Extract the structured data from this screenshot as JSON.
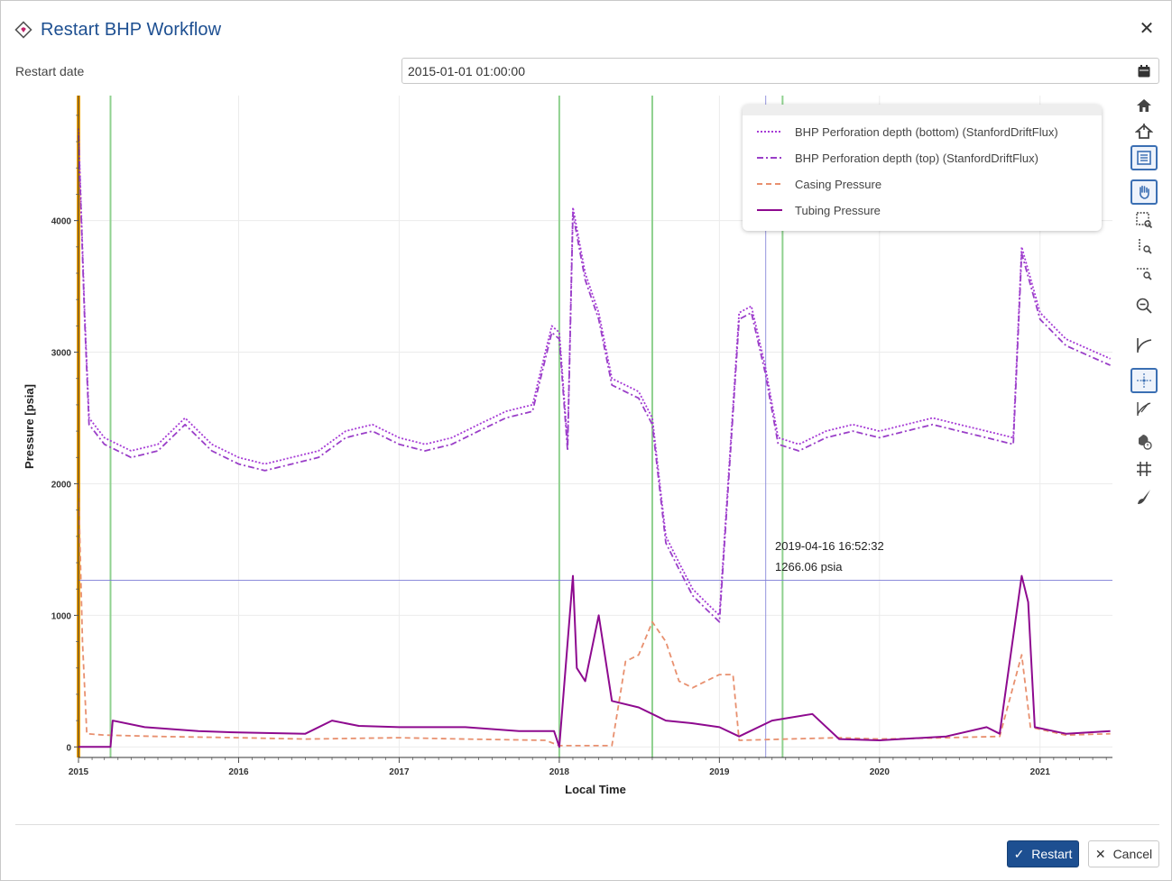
{
  "dialog": {
    "title": "Restart BHP Workflow",
    "close_label": "✕"
  },
  "restart_date": {
    "label": "Restart date",
    "value": "2015-01-01 01:00:00"
  },
  "chart_data": {
    "type": "line",
    "xlabel": "Local Time",
    "ylabel": "Pressure [psia]",
    "x_ticks": [
      "2015",
      "2016",
      "2017",
      "2018",
      "2019",
      "2020",
      "2021"
    ],
    "y_ticks": [
      "0",
      "1000",
      "2000",
      "3000",
      "4000"
    ],
    "xlim": [
      "2015-01-01",
      "2021-06-15"
    ],
    "ylim": [
      -80,
      4950
    ],
    "grid": true,
    "legend_position": "top-right",
    "series": [
      {
        "name": "BHP Perforation depth (bottom) (StanfordDriftFlux)",
        "color": "#a63bd6",
        "style": "dotted",
        "points": [
          [
            "2015-01-01",
            4700
          ],
          [
            "2015-01-15",
            3300
          ],
          [
            "2015-01-25",
            2500
          ],
          [
            "2015-03-01",
            2350
          ],
          [
            "2015-05-01",
            2250
          ],
          [
            "2015-07-01",
            2300
          ],
          [
            "2015-09-01",
            2500
          ],
          [
            "2015-11-01",
            2300
          ],
          [
            "2016-01-01",
            2200
          ],
          [
            "2016-03-01",
            2150
          ],
          [
            "2016-05-01",
            2200
          ],
          [
            "2016-07-01",
            2250
          ],
          [
            "2016-09-01",
            2400
          ],
          [
            "2016-11-01",
            2450
          ],
          [
            "2017-01-01",
            2350
          ],
          [
            "2017-03-01",
            2300
          ],
          [
            "2017-05-01",
            2350
          ],
          [
            "2017-07-01",
            2450
          ],
          [
            "2017-09-01",
            2550
          ],
          [
            "2017-11-01",
            2600
          ],
          [
            "2017-12-15",
            3200
          ],
          [
            "2018-01-01",
            3150
          ],
          [
            "2018-01-20",
            2300
          ],
          [
            "2018-02-01",
            4100
          ],
          [
            "2018-03-01",
            3600
          ],
          [
            "2018-04-01",
            3300
          ],
          [
            "2018-05-01",
            2800
          ],
          [
            "2018-07-01",
            2700
          ],
          [
            "2018-08-01",
            2500
          ],
          [
            "2018-09-01",
            1600
          ],
          [
            "2018-10-01",
            1400
          ],
          [
            "2018-11-01",
            1200
          ],
          [
            "2018-12-01",
            1100
          ],
          [
            "2019-01-01",
            1000
          ],
          [
            "2019-02-15",
            3300
          ],
          [
            "2019-03-15",
            3350
          ],
          [
            "2019-04-15",
            2900
          ],
          [
            "2019-05-15",
            2350
          ],
          [
            "2019-07-01",
            2300
          ],
          [
            "2019-09-01",
            2400
          ],
          [
            "2019-11-01",
            2450
          ],
          [
            "2020-01-01",
            2400
          ],
          [
            "2020-03-01",
            2450
          ],
          [
            "2020-05-01",
            2500
          ],
          [
            "2020-07-01",
            2450
          ],
          [
            "2020-09-01",
            2400
          ],
          [
            "2020-11-01",
            2350
          ],
          [
            "2020-11-20",
            3800
          ],
          [
            "2021-01-01",
            3300
          ],
          [
            "2021-03-01",
            3100
          ],
          [
            "2021-06-10",
            2950
          ]
        ]
      },
      {
        "name": "BHP Perforation depth (top) (StanfordDriftFlux)",
        "color": "#9a3fc8",
        "style": "dashdot",
        "points": [
          [
            "2015-01-01",
            4650
          ],
          [
            "2015-01-15",
            3250
          ],
          [
            "2015-01-25",
            2450
          ],
          [
            "2015-03-01",
            2300
          ],
          [
            "2015-05-01",
            2200
          ],
          [
            "2015-07-01",
            2250
          ],
          [
            "2015-09-01",
            2450
          ],
          [
            "2015-11-01",
            2250
          ],
          [
            "2016-01-01",
            2150
          ],
          [
            "2016-03-01",
            2100
          ],
          [
            "2016-05-01",
            2150
          ],
          [
            "2016-07-01",
            2200
          ],
          [
            "2016-09-01",
            2350
          ],
          [
            "2016-11-01",
            2400
          ],
          [
            "2017-01-01",
            2300
          ],
          [
            "2017-03-01",
            2250
          ],
          [
            "2017-05-01",
            2300
          ],
          [
            "2017-07-01",
            2400
          ],
          [
            "2017-09-01",
            2500
          ],
          [
            "2017-11-01",
            2550
          ],
          [
            "2017-12-15",
            3150
          ],
          [
            "2018-01-01",
            3100
          ],
          [
            "2018-01-20",
            2250
          ],
          [
            "2018-02-01",
            4050
          ],
          [
            "2018-03-01",
            3550
          ],
          [
            "2018-04-01",
            3250
          ],
          [
            "2018-05-01",
            2750
          ],
          [
            "2018-07-01",
            2650
          ],
          [
            "2018-08-01",
            2450
          ],
          [
            "2018-09-01",
            1550
          ],
          [
            "2018-10-01",
            1350
          ],
          [
            "2018-11-01",
            1150
          ],
          [
            "2018-12-01",
            1050
          ],
          [
            "2019-01-01",
            950
          ],
          [
            "2019-02-15",
            3250
          ],
          [
            "2019-03-15",
            3300
          ],
          [
            "2019-04-15",
            2850
          ],
          [
            "2019-05-15",
            2300
          ],
          [
            "2019-07-01",
            2250
          ],
          [
            "2019-09-01",
            2350
          ],
          [
            "2019-11-01",
            2400
          ],
          [
            "2020-01-01",
            2350
          ],
          [
            "2020-03-01",
            2400
          ],
          [
            "2020-05-01",
            2450
          ],
          [
            "2020-07-01",
            2400
          ],
          [
            "2020-09-01",
            2350
          ],
          [
            "2020-11-01",
            2300
          ],
          [
            "2020-11-20",
            3750
          ],
          [
            "2021-01-01",
            3250
          ],
          [
            "2021-03-01",
            3050
          ],
          [
            "2021-06-10",
            2900
          ]
        ]
      },
      {
        "name": "Casing Pressure",
        "color": "#e8906f",
        "style": "dashed",
        "points": [
          [
            "2015-01-01",
            2000
          ],
          [
            "2015-01-10",
            800
          ],
          [
            "2015-01-20",
            100
          ],
          [
            "2015-03-01",
            90
          ],
          [
            "2015-07-01",
            80
          ],
          [
            "2016-01-01",
            70
          ],
          [
            "2016-06-01",
            60
          ],
          [
            "2017-01-01",
            70
          ],
          [
            "2017-06-01",
            60
          ],
          [
            "2017-12-01",
            50
          ],
          [
            "2018-01-01",
            10
          ],
          [
            "2018-05-01",
            10
          ],
          [
            "2018-05-20",
            400
          ],
          [
            "2018-06-01",
            650
          ],
          [
            "2018-07-01",
            700
          ],
          [
            "2018-08-01",
            950
          ],
          [
            "2018-09-01",
            800
          ],
          [
            "2018-10-01",
            500
          ],
          [
            "2018-11-01",
            450
          ],
          [
            "2018-12-01",
            500
          ],
          [
            "2019-01-01",
            550
          ],
          [
            "2019-02-01",
            550
          ],
          [
            "2019-02-15",
            50
          ],
          [
            "2019-06-01",
            60
          ],
          [
            "2019-10-01",
            70
          ],
          [
            "2020-01-01",
            60
          ],
          [
            "2020-06-01",
            70
          ],
          [
            "2020-10-01",
            80
          ],
          [
            "2020-11-20",
            700
          ],
          [
            "2020-12-10",
            150
          ],
          [
            "2021-03-01",
            90
          ],
          [
            "2021-06-10",
            100
          ]
        ]
      },
      {
        "name": "Tubing Pressure",
        "color": "#8e0a8f",
        "style": "solid",
        "points": [
          [
            "2015-01-01",
            0
          ],
          [
            "2015-03-15",
            0
          ],
          [
            "2015-03-20",
            200
          ],
          [
            "2015-06-01",
            150
          ],
          [
            "2015-10-01",
            120
          ],
          [
            "2016-01-01",
            110
          ],
          [
            "2016-06-01",
            100
          ],
          [
            "2016-08-01",
            200
          ],
          [
            "2016-10-01",
            160
          ],
          [
            "2017-01-01",
            150
          ],
          [
            "2017-06-01",
            150
          ],
          [
            "2017-10-01",
            120
          ],
          [
            "2017-12-20",
            120
          ],
          [
            "2018-01-01",
            0
          ],
          [
            "2018-02-01",
            1300
          ],
          [
            "2018-02-10",
            600
          ],
          [
            "2018-03-01",
            500
          ],
          [
            "2018-04-01",
            1000
          ],
          [
            "2018-05-01",
            350
          ],
          [
            "2018-07-01",
            300
          ],
          [
            "2018-08-01",
            250
          ],
          [
            "2018-09-01",
            200
          ],
          [
            "2018-11-01",
            180
          ],
          [
            "2019-01-01",
            150
          ],
          [
            "2019-02-15",
            80
          ],
          [
            "2019-05-01",
            200
          ],
          [
            "2019-08-01",
            250
          ],
          [
            "2019-10-01",
            60
          ],
          [
            "2020-01-01",
            50
          ],
          [
            "2020-06-01",
            80
          ],
          [
            "2020-09-01",
            150
          ],
          [
            "2020-10-01",
            100
          ],
          [
            "2020-11-20",
            1300
          ],
          [
            "2020-12-05",
            1100
          ],
          [
            "2020-12-20",
            150
          ],
          [
            "2021-03-01",
            100
          ],
          [
            "2021-06-10",
            120
          ]
        ]
      }
    ],
    "vertical_markers": {
      "orange": [
        "2015-01-01"
      ],
      "green": [
        "2015-03-15",
        "2018-01-01",
        "2018-08-01",
        "2019-05-25"
      ]
    },
    "crosshair": {
      "x": "2019-04-16 16:52:32",
      "y": 1266.06
    }
  },
  "tooltip": {
    "line1": "2019-04-16 16:52:32",
    "line2": "1266.06 psia"
  },
  "toolbar": {
    "tools": [
      "reset-home-icon",
      "home-icon",
      "legend-toggle-icon",
      "pan-hand-icon",
      "box-zoom-icon",
      "y-zoom-icon",
      "x-zoom-icon",
      "zoom-out-icon",
      "curve-fit-icon",
      "crosshair-icon",
      "tangent-icon",
      "hover-tool-icon",
      "grid-toggle-icon",
      "style-brush-icon"
    ]
  },
  "buttons": {
    "restart": "Restart",
    "cancel": "Cancel"
  }
}
